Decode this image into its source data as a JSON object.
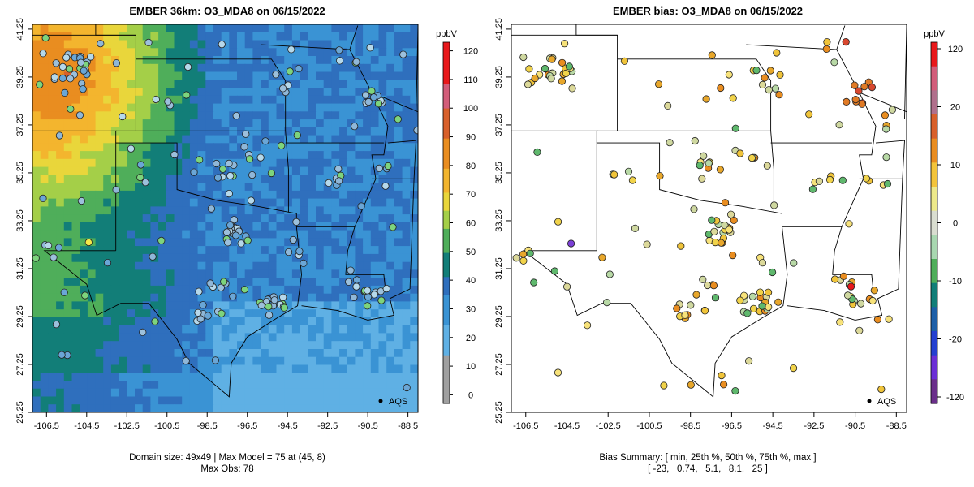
{
  "chart_data": [
    {
      "type": "heatmap",
      "title": "EMBER 36km: O3_MDA8 on 06/15/2022",
      "x_ticks": [
        "-106.5",
        "-104.5",
        "-102.5",
        "-100.5",
        "-98.5",
        "-96.5",
        "-94.5",
        "-92.5",
        "-90.5",
        "-88.5"
      ],
      "y_ticks": [
        "41.25",
        "39.25",
        "37.25",
        "35.25",
        "33.25",
        "31.25",
        "29.25",
        "27.25",
        "25.25"
      ],
      "xlim": [
        -107.2,
        -88.0
      ],
      "ylim": [
        25.25,
        41.45
      ],
      "colorbar": {
        "unit": "ppbV",
        "ticks": [
          "120",
          "110",
          "100",
          "90",
          "80",
          "70",
          "60",
          "50",
          "40",
          "30",
          "20",
          "10",
          "0"
        ],
        "range": [
          -3,
          123
        ]
      },
      "legend": {
        "label": "AQS",
        "placement": "bottom-right"
      },
      "footer": [
        "Domain size: 49x49 | Max Model = 75 at (45, 8)",
        "Max Obs: 78"
      ]
    },
    {
      "type": "scatter",
      "title": "EMBER bias: O3_MDA8 on 06/15/2022",
      "x_ticks": [
        "-106.5",
        "-104.5",
        "-102.5",
        "-100.5",
        "-98.5",
        "-96.5",
        "-94.5",
        "-92.5",
        "-90.5",
        "-88.5"
      ],
      "y_ticks": [
        "41.25",
        "39.25",
        "37.25",
        "35.25",
        "33.25",
        "31.25",
        "29.25",
        "27.25",
        "25.25"
      ],
      "xlim": [
        -107.2,
        -88.0
      ],
      "ylim": [
        25.25,
        41.45
      ],
      "colorbar": {
        "unit": "ppbV",
        "ticks": [
          "120",
          "20",
          "10",
          "0",
          "-10",
          "-20",
          "-120"
        ]
      },
      "legend": {
        "label": "AQS",
        "placement": "bottom-right"
      },
      "footer": [
        "Bias Summary: [ min, 25th %, 50th %, 75th %, max ]",
        "[ -23,   0.74,   5.1,   8.1,   25 ]"
      ],
      "bias_summary": {
        "min": -23,
        "p25": 0.74,
        "p50": 5.1,
        "p75": 8.1,
        "max": 25
      }
    }
  ]
}
